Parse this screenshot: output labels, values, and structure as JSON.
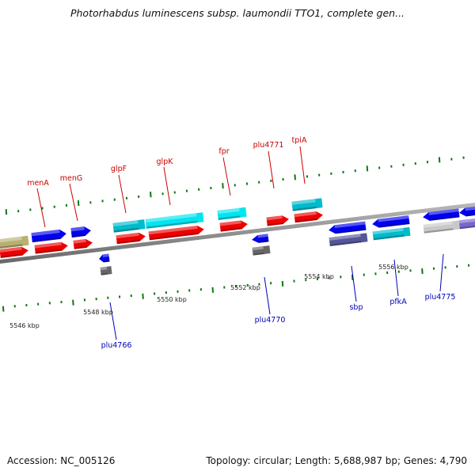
{
  "title": "Photorhabdus luminescens subsp. laumondii TTO1, complete gen...",
  "footer": {
    "accession": "Accession: NC_005126",
    "summary": "Topology: circular; Length: 5,688,987 bp; Genes: 4,790"
  },
  "colors": {
    "forward_label": "#cc0000",
    "reverse_label": "#0000bb",
    "tick": "#117711",
    "backbone": "#888888"
  },
  "scale_labels": [
    "5546 kbp",
    "5548 kbp",
    "5550 kbp",
    "5552 kbp",
    "5554 kbp",
    "5556 kbp"
  ],
  "forward_genes": [
    {
      "label": "menA",
      "color": "#cc0000"
    },
    {
      "label": "menG",
      "color": "#cc0000"
    },
    {
      "label": "glpF",
      "color": "#cc0000"
    },
    {
      "label": "glpK",
      "color": "#cc0000"
    },
    {
      "label": "fpr",
      "color": "#cc0000"
    },
    {
      "label": "plu4771",
      "color": "#cc0000"
    },
    {
      "label": "tpiA",
      "color": "#cc0000"
    }
  ],
  "reverse_genes": [
    {
      "label": "plu4766",
      "color": "#0000bb"
    },
    {
      "label": "plu4770",
      "color": "#0000bb"
    },
    {
      "label": "sbp",
      "color": "#0000bb"
    },
    {
      "label": "pfkA",
      "color": "#0000bb"
    },
    {
      "label": "plu4775",
      "color": "#0000bb"
    }
  ]
}
